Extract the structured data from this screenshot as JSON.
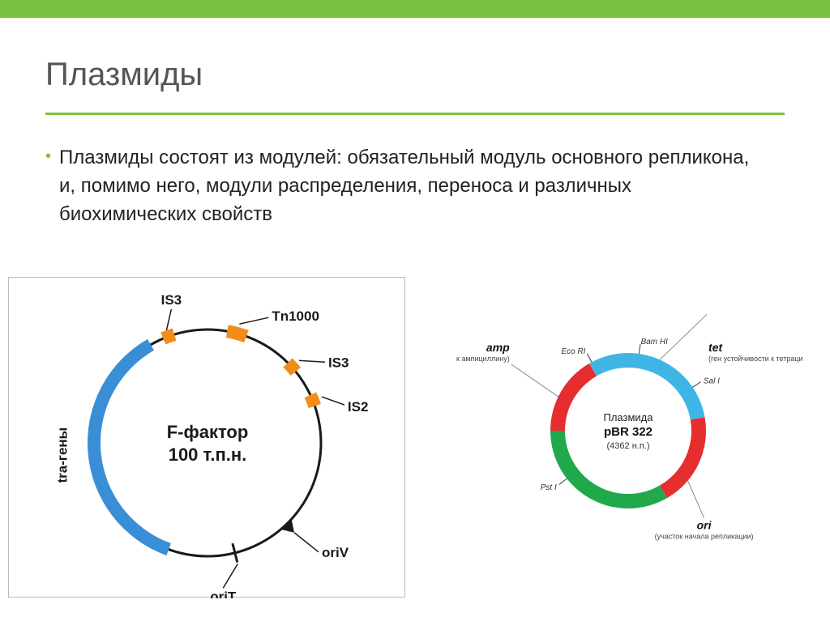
{
  "slide": {
    "title": "Плазмиды",
    "body": "Плазмиды состоят из модулей: обязательный модуль основного репликона, и, помимо него, модули распределения, переноса и различных биохимических свойств"
  },
  "colors": {
    "accent": "#7cc242",
    "text": "#222222",
    "title": "#555555",
    "blue": "#3a8ed6",
    "orange": "#f28c1a",
    "black": "#1a1a1a",
    "red": "#e62e2e",
    "green": "#21a84a",
    "cyan": "#3fb5e6",
    "grey": "#888888"
  },
  "plasmid1": {
    "center_line1": "F-фактор",
    "center_line2": "100 т.п.н.",
    "labels": {
      "IS3_top": "IS3",
      "Tn1000": "Tn1000",
      "IS3_side": "IS3",
      "IS2": "IS2",
      "oriV": "oriV",
      "oriT": "oriT",
      "tra": "tra-гены"
    },
    "radius_outer": 148,
    "radius_inner": 132,
    "stroke_thin": 3,
    "blue_arc": {
      "start_deg": 200,
      "end_deg": 330
    },
    "orange_segments": [
      {
        "center_deg": 340,
        "span_deg": 6,
        "label": "IS3_top"
      },
      {
        "center_deg": 15,
        "span_deg": 10,
        "label": "Tn1000"
      },
      {
        "center_deg": 48,
        "span_deg": 6,
        "label": "IS3_side"
      },
      {
        "center_deg": 68,
        "span_deg": 6,
        "label": "IS2"
      }
    ],
    "oriV_deg": 136,
    "oriT_deg": 166,
    "font_center": 22,
    "font_label": 17
  },
  "plasmid2": {
    "center_line1": "Плазмида",
    "center_line2": "pBR 322",
    "center_line3": "(4362 н.п.)",
    "segments": [
      {
        "start_deg": 270,
        "end_deg": 330,
        "color": "#e62e2e"
      },
      {
        "start_deg": 330,
        "end_deg": 80,
        "color": "#3fb5e6"
      },
      {
        "start_deg": 80,
        "end_deg": 150,
        "color": "#e62e2e"
      },
      {
        "start_deg": 150,
        "end_deg": 270,
        "color": "#21a84a"
      }
    ],
    "radius_outer": 96,
    "radius_inner": 78,
    "tick_labels": [
      {
        "deg": 332,
        "text": "Eco RI"
      },
      {
        "deg": 8,
        "text": "Bam HI"
      },
      {
        "deg": 56,
        "text": "Sal I"
      },
      {
        "deg": 232,
        "text": "Pst I"
      }
    ],
    "outer_labels": {
      "amp": {
        "title": "amp",
        "sub": "(ген устойчивости к ампициллину)"
      },
      "tet": {
        "title": "tet",
        "sub": "(ген устойчивости к тетрациклину)"
      },
      "ori": {
        "title": "ori",
        "sub": "(участок начала репликации)"
      }
    },
    "font_center_main": 13,
    "font_center_bold": 15,
    "font_tick": 10,
    "font_outer_title": 14,
    "font_outer_sub": 9
  }
}
